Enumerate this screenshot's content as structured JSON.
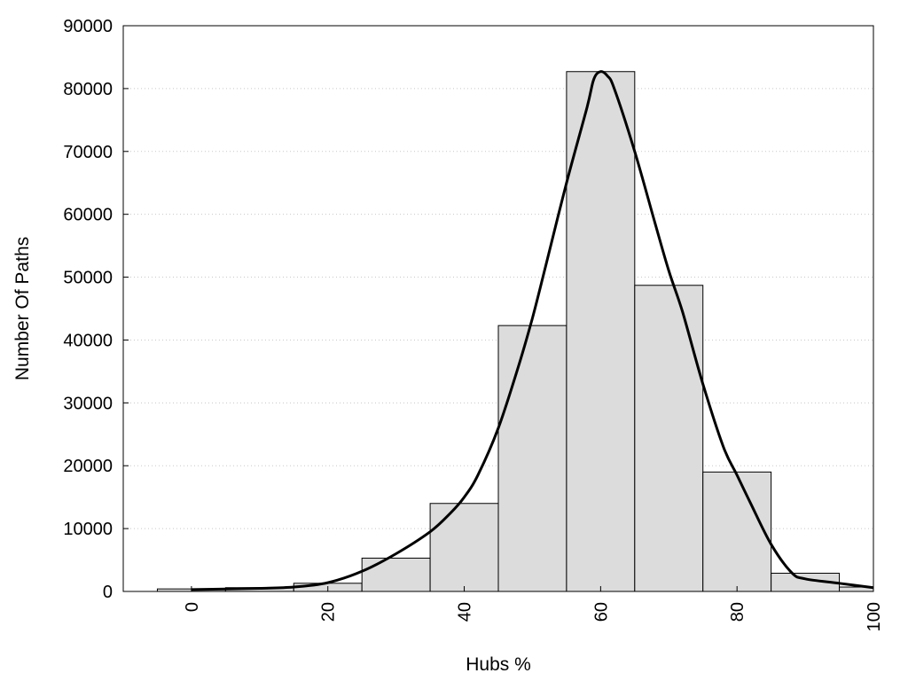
{
  "chart_data": {
    "type": "bar",
    "title": "",
    "xlabel": "Hubs %",
    "ylabel": "Number Of Paths",
    "xlim": [
      -10,
      100
    ],
    "ylim": [
      0,
      90000
    ],
    "x_ticks": [
      0,
      20,
      40,
      60,
      80,
      100
    ],
    "y_ticks": [
      0,
      10000,
      20000,
      30000,
      40000,
      50000,
      60000,
      70000,
      80000,
      90000
    ],
    "grid": "horizontal-dotted",
    "bar_width": 10,
    "bars": [
      {
        "x": 0,
        "value": 400
      },
      {
        "x": 10,
        "value": 600
      },
      {
        "x": 20,
        "value": 1300
      },
      {
        "x": 30,
        "value": 5300
      },
      {
        "x": 40,
        "value": 14000
      },
      {
        "x": 50,
        "value": 42300
      },
      {
        "x": 60,
        "value": 82700
      },
      {
        "x": 70,
        "value": 48700
      },
      {
        "x": 80,
        "value": 19000
      },
      {
        "x": 90,
        "value": 2900
      },
      {
        "x": 100,
        "value": 700
      }
    ],
    "density_curve": {
      "x": [
        0,
        5,
        10,
        15,
        20,
        25,
        30,
        35,
        38,
        40,
        42,
        45,
        48,
        50,
        52,
        55,
        58,
        59,
        60,
        61,
        62,
        65,
        68,
        70,
        72,
        75,
        78,
        80,
        82,
        85,
        88,
        90,
        95,
        100
      ],
      "y": [
        300,
        400,
        500,
        700,
        1400,
        3200,
        6000,
        9500,
        12500,
        15000,
        18500,
        26000,
        36000,
        43500,
        52000,
        65000,
        77000,
        81500,
        82700,
        82000,
        80000,
        70000,
        58500,
        51000,
        44500,
        33000,
        23000,
        18500,
        14000,
        7500,
        3000,
        2000,
        1300,
        600
      ]
    },
    "colors": {
      "bar_fill": "#dcdcdc",
      "bar_stroke": "#000000",
      "curve": "#000000",
      "grid": "#c8c8c8"
    }
  }
}
